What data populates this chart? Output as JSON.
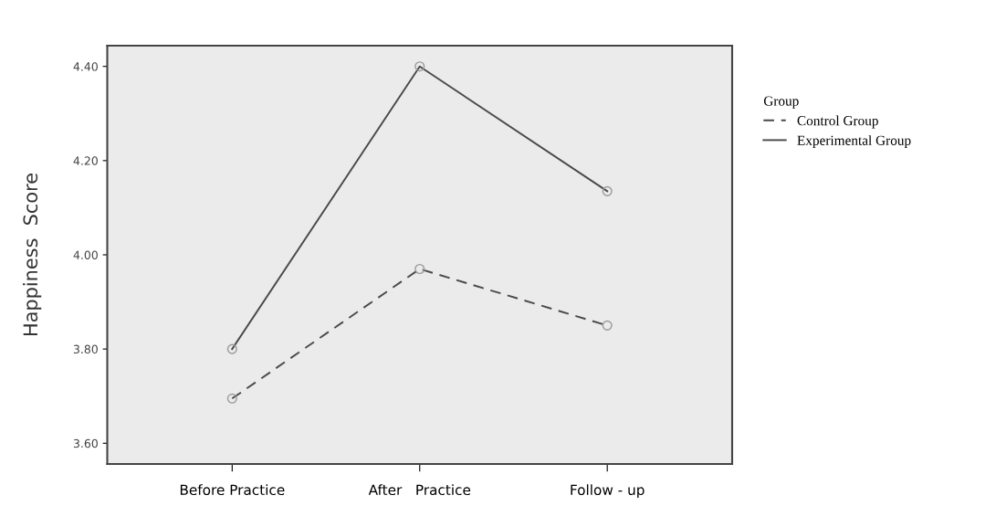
{
  "chart_data": {
    "type": "line",
    "ylabel": "Happiness  Score",
    "legend_title": "Group",
    "categories": [
      "Before Practice",
      "After   Practice",
      "Follow - up"
    ],
    "series": [
      {
        "name": "Control Group",
        "color": "#4a4a4a",
        "values": [
          3.695,
          3.97,
          3.85
        ],
        "line_style": "dashed"
      },
      {
        "name": "Experimental Group",
        "color": "#4a4a4a",
        "values": [
          3.8,
          4.4,
          4.135
        ],
        "line_style": "solid"
      }
    ],
    "ylim": [
      3.556,
      4.444
    ],
    "yticks": [
      {
        "value": 3.6,
        "label": "3.60"
      },
      {
        "value": 3.8,
        "label": "3.80"
      },
      {
        "value": 4.0,
        "label": "4.00"
      },
      {
        "value": 4.2,
        "label": "4.20"
      },
      {
        "value": 4.4,
        "label": "4.40"
      }
    ],
    "marker": "circle",
    "grid": false,
    "legend": "right"
  }
}
